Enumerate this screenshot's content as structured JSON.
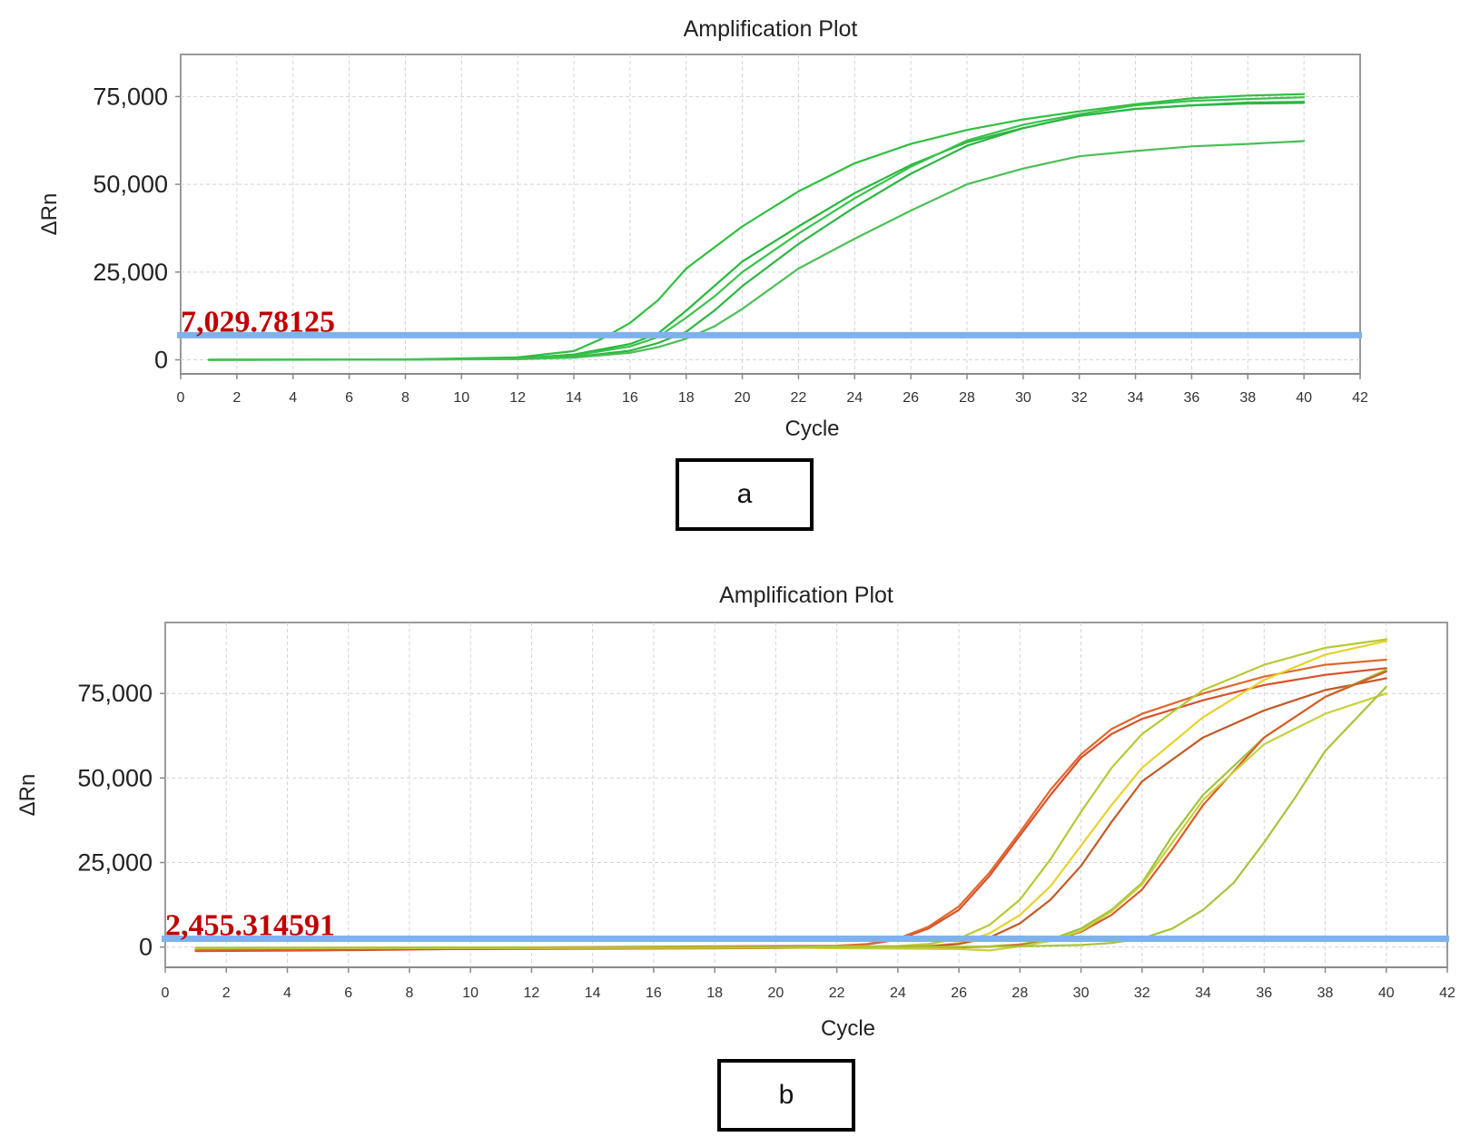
{
  "chart_data": [
    {
      "type": "line",
      "title": "Amplification Plot",
      "xlabel": "Cycle",
      "ylabel": "ΔRn",
      "xlim": [
        0,
        42
      ],
      "ylim": [
        -4000,
        87000
      ],
      "x_ticks": [
        0,
        2,
        4,
        6,
        8,
        10,
        12,
        14,
        16,
        18,
        20,
        22,
        24,
        26,
        28,
        30,
        32,
        34,
        36,
        38,
        40,
        42
      ],
      "y_ticks": [
        0,
        25000,
        50000,
        75000
      ],
      "y_tick_labels": [
        "0",
        "25,000",
        "50,000",
        "75,000"
      ],
      "grid": true,
      "threshold": {
        "value": 7029.78125,
        "label": "7,029.78125",
        "color": "#7fb2ea"
      },
      "panel_label": "a",
      "series": [
        {
          "color": "#2fbf3f",
          "x": [
            1,
            8,
            12,
            14,
            15,
            16,
            17,
            18,
            20,
            22,
            24,
            26,
            28,
            30,
            32,
            34,
            36,
            38,
            40
          ],
          "y": [
            0,
            100,
            700,
            2500,
            6000,
            10500,
            17000,
            26000,
            38000,
            48000,
            56000,
            61500,
            65500,
            68500,
            70800,
            72800,
            74500,
            75300,
            75700
          ]
        },
        {
          "color": "#27b83a",
          "x": [
            1,
            8,
            12,
            14,
            16,
            17,
            18,
            19,
            20,
            22,
            24,
            26,
            28,
            30,
            32,
            34,
            36,
            38,
            40
          ],
          "y": [
            0,
            80,
            400,
            1500,
            4500,
            7500,
            14000,
            21000,
            28000,
            38000,
            47500,
            55500,
            62000,
            66000,
            69500,
            71500,
            72500,
            73300,
            73500
          ]
        },
        {
          "color": "#39c24b",
          "x": [
            1,
            8,
            12,
            14,
            16,
            17,
            18,
            19,
            20,
            22,
            24,
            26,
            28,
            30,
            32,
            34,
            36,
            38,
            40
          ],
          "y": [
            0,
            80,
            350,
            1200,
            3800,
            6500,
            12000,
            18000,
            25000,
            36000,
            46000,
            55000,
            62500,
            67000,
            70000,
            72500,
            73800,
            74300,
            74800
          ]
        },
        {
          "color": "#2db544",
          "x": [
            1,
            8,
            12,
            14,
            16,
            17,
            18,
            19,
            20,
            22,
            24,
            26,
            28,
            30,
            32,
            34,
            36,
            38,
            40
          ],
          "y": [
            0,
            60,
            250,
            800,
            2600,
            4800,
            8000,
            14000,
            21000,
            33000,
            43500,
            53000,
            61000,
            66000,
            69500,
            71500,
            72500,
            73000,
            73200
          ]
        },
        {
          "color": "#4bbf55",
          "x": [
            1,
            8,
            12,
            14,
            16,
            17,
            18,
            19,
            20,
            22,
            24,
            26,
            28,
            30,
            32,
            34,
            36,
            38,
            40
          ],
          "y": [
            0,
            50,
            200,
            600,
            2000,
            3600,
            6000,
            9500,
            14500,
            26000,
            34500,
            42500,
            50000,
            54500,
            58000,
            59500,
            60800,
            61500,
            62300
          ]
        }
      ]
    },
    {
      "type": "line",
      "title": "Amplification Plot",
      "xlabel": "Cycle",
      "ylabel": "ΔRn",
      "xlim": [
        0,
        42
      ],
      "ylim": [
        -6000,
        96000
      ],
      "x_ticks": [
        0,
        2,
        4,
        6,
        8,
        10,
        12,
        14,
        16,
        18,
        20,
        22,
        24,
        26,
        28,
        30,
        32,
        34,
        36,
        38,
        40,
        42
      ],
      "y_ticks": [
        0,
        25000,
        50000,
        75000
      ],
      "y_tick_labels": [
        "0",
        "25,000",
        "50,000",
        "75,000"
      ],
      "grid": true,
      "threshold": {
        "value": 2455.314591,
        "label": "2,455.314591",
        "color": "#7fb2ea"
      },
      "panel_label": "b",
      "series": [
        {
          "color": "#d9502a",
          "x": [
            1,
            5,
            14,
            22,
            23,
            24,
            25,
            26,
            27,
            28,
            29,
            30,
            31,
            32,
            34,
            36,
            38,
            40
          ],
          "y": [
            -1200,
            -1000,
            -200,
            300,
            800,
            2200,
            5500,
            11000,
            21000,
            33000,
            45000,
            56000,
            63000,
            67500,
            73000,
            77500,
            80500,
            82500
          ]
        },
        {
          "color": "#e0682c",
          "x": [
            1,
            5,
            14,
            22,
            23,
            24,
            25,
            26,
            27,
            28,
            29,
            30,
            31,
            32,
            34,
            36,
            38,
            40
          ],
          "y": [
            -900,
            -700,
            0,
            400,
            900,
            2500,
            6000,
            12000,
            22000,
            34000,
            46500,
            57000,
            64500,
            69000,
            75000,
            80000,
            83500,
            85000
          ]
        },
        {
          "color": "#b8c934",
          "x": [
            1,
            10,
            20,
            24,
            25,
            26,
            27,
            28,
            29,
            30,
            31,
            32,
            34,
            36,
            38,
            40
          ],
          "y": [
            -300,
            -200,
            0,
            300,
            900,
            2500,
            6500,
            14000,
            26000,
            40000,
            53000,
            63000,
            76000,
            83500,
            88500,
            91000
          ]
        },
        {
          "color": "#e8d22a",
          "x": [
            1,
            10,
            20,
            25,
            26,
            27,
            28,
            29,
            30,
            31,
            32,
            34,
            36,
            38,
            40
          ],
          "y": [
            -500,
            -400,
            -200,
            300,
            1200,
            4000,
            9500,
            18000,
            30000,
            42000,
            53000,
            68000,
            79000,
            86500,
            90500
          ]
        },
        {
          "color": "#c25a26",
          "x": [
            1,
            10,
            20,
            25,
            26,
            27,
            28,
            29,
            30,
            31,
            32,
            34,
            36,
            38,
            40
          ],
          "y": [
            -700,
            -600,
            -300,
            200,
            900,
            2800,
            7000,
            14000,
            24000,
            37000,
            49000,
            62000,
            70000,
            76000,
            79500
          ]
        },
        {
          "color": "#9fc23b",
          "x": [
            1,
            10,
            20,
            26,
            27,
            28,
            29,
            30,
            31,
            32,
            33,
            34,
            36,
            38,
            40
          ],
          "y": [
            -300,
            -200,
            -100,
            0,
            200,
            800,
            2200,
            5500,
            11000,
            19000,
            33000,
            45000,
            62000,
            74000,
            82000
          ]
        },
        {
          "color": "#d95b2b",
          "x": [
            1,
            10,
            20,
            26,
            27,
            28,
            29,
            30,
            31,
            32,
            33,
            34,
            36,
            38,
            40
          ],
          "y": [
            -600,
            -400,
            -200,
            -100,
            100,
            600,
            1800,
            4500,
            9500,
            17000,
            29000,
            42000,
            62000,
            74000,
            81500
          ]
        },
        {
          "color": "#c8d13c",
          "x": [
            1,
            10,
            20,
            26,
            27,
            28,
            29,
            30,
            31,
            32,
            33,
            34,
            36,
            38,
            40
          ],
          "y": [
            -400,
            -300,
            -200,
            -600,
            -1000,
            200,
            1800,
            4800,
            10500,
            18500,
            31000,
            43500,
            60000,
            69000,
            75000
          ]
        },
        {
          "color": "#a8c43a",
          "x": [
            1,
            10,
            20,
            26,
            28,
            30,
            31,
            32,
            33,
            34,
            35,
            36,
            37,
            38,
            40
          ],
          "y": [
            -200,
            -100,
            0,
            100,
            200,
            600,
            1200,
            2500,
            5500,
            11000,
            19000,
            31000,
            44000,
            58000,
            77000
          ]
        }
      ]
    }
  ]
}
